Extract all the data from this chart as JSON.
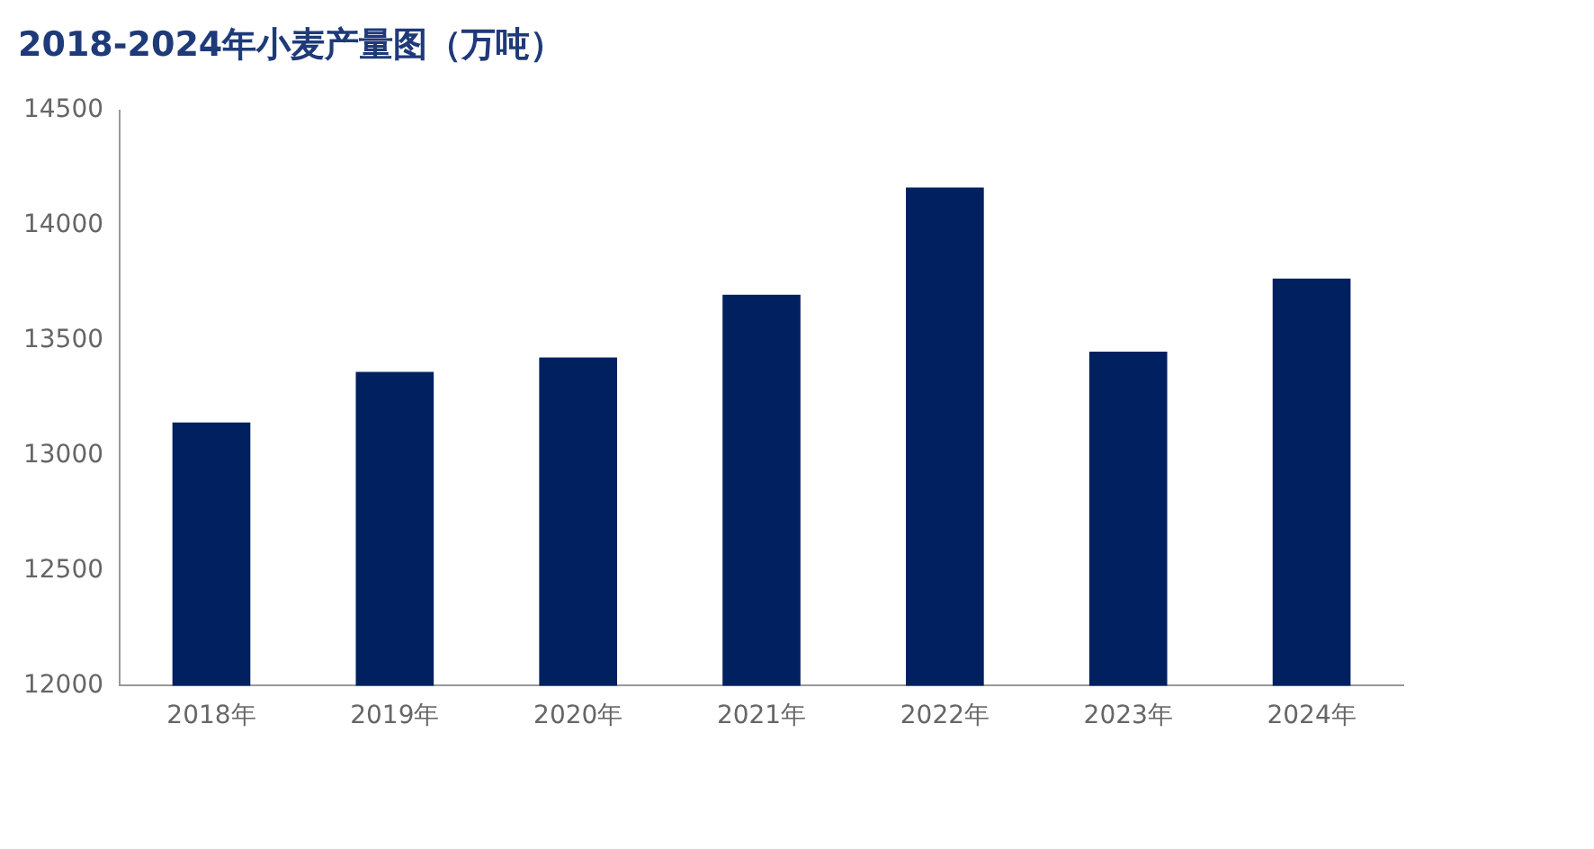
{
  "chart_data": {
    "type": "bar",
    "title": "2018-2024年小麦产量图（万吨）",
    "categories": [
      "2018年",
      "2019年",
      "2020年",
      "2021年",
      "2022年",
      "2023年",
      "2024年"
    ],
    "values": [
      13144,
      13364,
      13426,
      13699,
      14165,
      13452,
      13769
    ],
    "color": "#002060",
    "ylim": [
      12000,
      14500
    ],
    "yticks": [
      12000,
      12500,
      13000,
      13500,
      14000,
      14500
    ],
    "grid": false
  }
}
